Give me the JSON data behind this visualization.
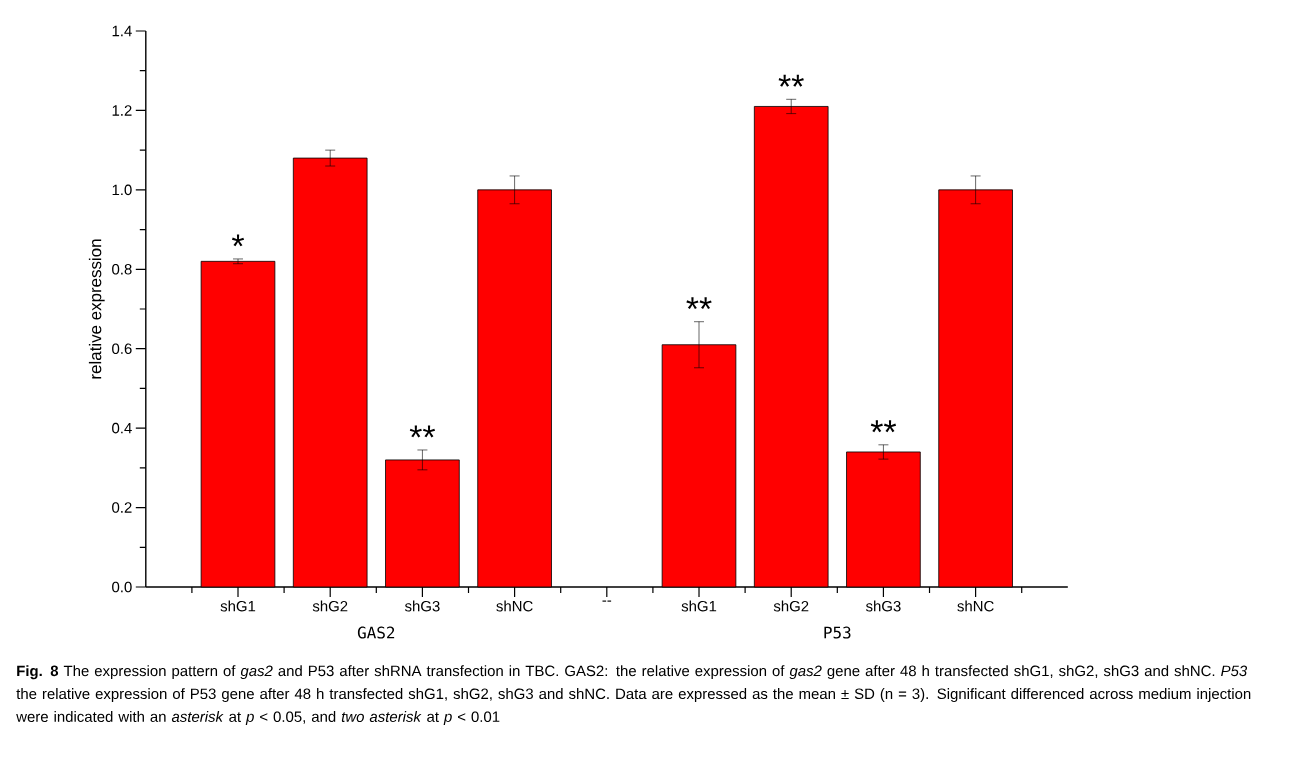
{
  "chart_data": {
    "type": "bar",
    "ylabel": "relative expression",
    "categories": [
      "shG1",
      "shG2",
      "shG3",
      "shNC",
      "--",
      "shG1",
      "shG2",
      "shG3",
      "shNC"
    ],
    "values": [
      0.82,
      1.08,
      0.32,
      1.0,
      null,
      0.61,
      1.21,
      0.34,
      1.0
    ],
    "errors": [
      0.006,
      0.02,
      0.025,
      0.035,
      null,
      0.058,
      0.018,
      0.018,
      0.035
    ],
    "value_labels": [
      "*",
      null,
      "**",
      null,
      null,
      "**",
      "**",
      "**",
      null
    ],
    "color": "#ff0000",
    "ylim": [
      0,
      1.4
    ],
    "yticks": [
      {
        "value": 0,
        "label": "0.0"
      },
      0.2,
      0.4,
      0.6,
      0.8,
      {
        "value": 1,
        "label": "1.0"
      },
      1.2,
      1.4
    ],
    "grid": false,
    "annotations": [
      "GAS2",
      "P53",
      "**Fig. 8** The expression pattern of *gas2* and P53 after shRNA transfection in TBC. GAS2: the relative expression of *gas2* gene after 48 h transfected shG1, shG2, shG3 and shNC. *P53* the relative expression of P53 gene after 48 h transfected shG1, shG2, shG3 and shNC. Data are expressed as the mean ± SD (n = 3). Significant differenced across medium injection were indicated with an *asterisk* at *p* < 0.05, and *two asterisk* at *p* < 0.01"
    ]
  }
}
